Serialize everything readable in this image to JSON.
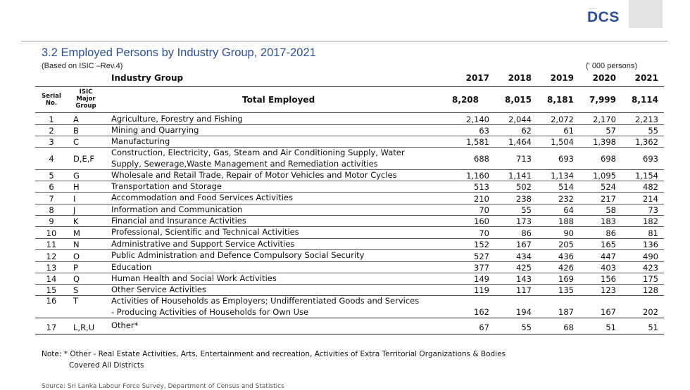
{
  "header": {
    "logo_text": "DCS",
    "logo_dots": "....",
    "title": "3.2 Employed Persons by Industry Group,  2017-2021",
    "subtitle": "(Based on ISIC –Rev.4)",
    "unit": "(' 000 persons)"
  },
  "table": {
    "industry_header": "Industry Group",
    "years": [
      "2017",
      "2018",
      "2019",
      "2020",
      "2021"
    ],
    "serial_header": "Serial No.",
    "isic_header": "ISIC Major Group",
    "total_label": "Total Employed",
    "total_values": [
      "8,208",
      "8,015",
      "8,181",
      "7,999",
      "8,114"
    ],
    "rows": [
      {
        "serial": "1",
        "isic": "A",
        "desc": [
          "Agriculture, Forestry and Fishing"
        ],
        "values": [
          "2,140",
          "2,044",
          "2,072",
          "2,170",
          "2,213"
        ]
      },
      {
        "serial": "2",
        "isic": "B",
        "desc": [
          "Mining and Quarrying"
        ],
        "values": [
          "63",
          "62",
          "61",
          "57",
          "55"
        ]
      },
      {
        "serial": "3",
        "isic": "C",
        "desc": [
          "Manufacturing"
        ],
        "values": [
          "1,581",
          "1,464",
          "1,504",
          "1,398",
          "1,362"
        ]
      },
      {
        "serial": "4",
        "isic": "D,E,F",
        "desc": [
          "Construction, Electricity, Gas, Steam and Air Conditioning Supply, Water",
          "Supply, Sewerage,Waste Management and Remediation activities"
        ],
        "values": [
          "688",
          "713",
          "693",
          "698",
          "693"
        ]
      },
      {
        "serial": "5",
        "isic": "G",
        "desc": [
          "Wholesale and Retail Trade, Repair of Motor Vehicles and Motor Cycles"
        ],
        "values": [
          "1,160",
          "1,141",
          "1,134",
          "1,095",
          "1,154"
        ]
      },
      {
        "serial": "6",
        "isic": "H",
        "desc": [
          "Transportation and Storage"
        ],
        "values": [
          "513",
          "502",
          "514",
          "524",
          "482"
        ]
      },
      {
        "serial": "7",
        "isic": "I",
        "desc": [
          "Accommodation and Food Services Activities"
        ],
        "values": [
          "210",
          "238",
          "232",
          "217",
          "214"
        ]
      },
      {
        "serial": "8",
        "isic": "J",
        "desc": [
          "Information and Communication"
        ],
        "values": [
          "70",
          "55",
          "64",
          "58",
          "73"
        ]
      },
      {
        "serial": "9",
        "isic": "K",
        "desc": [
          "Financial and Insurance Activities"
        ],
        "values": [
          "160",
          "173",
          "188",
          "183",
          "182"
        ]
      },
      {
        "serial": "10",
        "isic": "M",
        "desc": [
          "Professional, Scientific and Technical Activities"
        ],
        "values": [
          "70",
          "86",
          "90",
          "86",
          "81"
        ]
      },
      {
        "serial": "11",
        "isic": "N",
        "desc": [
          "Administrative and Support Service Activities"
        ],
        "values": [
          "152",
          "167",
          "205",
          "165",
          "136"
        ]
      },
      {
        "serial": "12",
        "isic": "O",
        "desc": [
          "Public Administration and Defence Compulsory Social Security"
        ],
        "values": [
          "527",
          "434",
          "436",
          "447",
          "490"
        ]
      },
      {
        "serial": "13",
        "isic": "P",
        "desc": [
          "Education"
        ],
        "values": [
          "377",
          "425",
          "426",
          "403",
          "423"
        ]
      },
      {
        "serial": "14",
        "isic": "Q",
        "desc": [
          "Human Health and Social Work Activities"
        ],
        "values": [
          "149",
          "143",
          "169",
          "156",
          "175"
        ]
      },
      {
        "serial": "15",
        "isic": "S",
        "desc": [
          "Other Service Activities"
        ],
        "values": [
          "119",
          "117",
          "135",
          "123",
          "128"
        ]
      },
      {
        "serial": "16",
        "isic": "T",
        "desc": [
          "Activities of Households as Employers; Undifferentiated Goods and Services",
          "- Producing Activities of Households for Own Use"
        ],
        "values": [
          "162",
          "194",
          "187",
          "167",
          "202"
        ]
      },
      {
        "serial": "17",
        "isic": "L,R,U",
        "desc": [
          "Other*"
        ],
        "values": [
          "67",
          "55",
          "68",
          "51",
          "51"
        ]
      }
    ]
  },
  "notes": {
    "line1": "Note: * Other - Real Estate Activities, Arts, Entertainment and recreation, Activities of Extra Territorial Organizations & Bodies",
    "line2": "Covered All Districts",
    "source": "Source: Sri Lanka Labour Force Survey, Department of Census and Statistics"
  }
}
